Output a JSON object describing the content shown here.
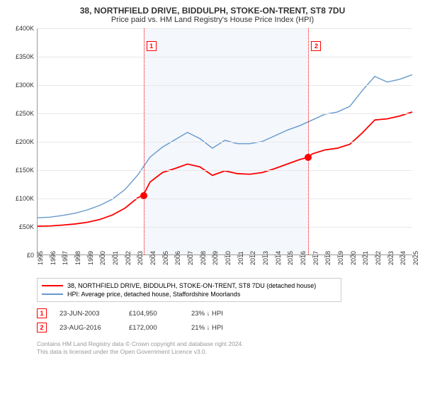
{
  "title": "38, NORTHFIELD DRIVE, BIDDULPH, STOKE-ON-TRENT, ST8 7DU",
  "subtitle": "Price paid vs. HM Land Registry's House Price Index (HPI)",
  "chart": {
    "type": "line",
    "ylim": [
      0,
      400000
    ],
    "ytick_step": 50000,
    "yticks": [
      "£0",
      "£50K",
      "£100K",
      "£150K",
      "£200K",
      "£250K",
      "£300K",
      "£350K",
      "£400K"
    ],
    "xlim": [
      1995,
      2025
    ],
    "xticks": [
      "1995",
      "1996",
      "1997",
      "1998",
      "1999",
      "2000",
      "2001",
      "2002",
      "2003",
      "2004",
      "2005",
      "2006",
      "2007",
      "2008",
      "2009",
      "2010",
      "2011",
      "2012",
      "2013",
      "2014",
      "2015",
      "2016",
      "2017",
      "2018",
      "2019",
      "2020",
      "2021",
      "2022",
      "2023",
      "2024",
      "2025"
    ],
    "background_color": "#ffffff",
    "grid_color": "#e8e8e8",
    "shade_color": "#f4f7fc",
    "shade_range": [
      2003.47,
      2016.65
    ],
    "series": [
      {
        "name": "property",
        "label": "38, NORTHFIELD DRIVE, BIDDULPH, STOKE-ON-TRENT, ST8 7DU (detached house)",
        "color": "#ff0000",
        "width": 1.8,
        "data": [
          [
            1995,
            50000
          ],
          [
            1996,
            50500
          ],
          [
            1997,
            52000
          ],
          [
            1998,
            54000
          ],
          [
            1999,
            57000
          ],
          [
            2000,
            62000
          ],
          [
            2001,
            70000
          ],
          [
            2002,
            82000
          ],
          [
            2003,
            100000
          ],
          [
            2003.47,
            104950
          ],
          [
            2004,
            128000
          ],
          [
            2005,
            145000
          ],
          [
            2006,
            152000
          ],
          [
            2007,
            160000
          ],
          [
            2008,
            155000
          ],
          [
            2009,
            140000
          ],
          [
            2010,
            148000
          ],
          [
            2011,
            143000
          ],
          [
            2012,
            142000
          ],
          [
            2013,
            145000
          ],
          [
            2014,
            152000
          ],
          [
            2015,
            160000
          ],
          [
            2016,
            168000
          ],
          [
            2016.65,
            172000
          ],
          [
            2017,
            178000
          ],
          [
            2018,
            185000
          ],
          [
            2019,
            188000
          ],
          [
            2020,
            195000
          ],
          [
            2021,
            215000
          ],
          [
            2022,
            238000
          ],
          [
            2023,
            240000
          ],
          [
            2024,
            245000
          ],
          [
            2025,
            252000
          ]
        ]
      },
      {
        "name": "hpi",
        "label": "HPI: Average price, detached house, Staffordshire Moorlands",
        "color": "#6699cc",
        "width": 1.4,
        "data": [
          [
            1995,
            65000
          ],
          [
            1996,
            66000
          ],
          [
            1997,
            69000
          ],
          [
            1998,
            73000
          ],
          [
            1999,
            79000
          ],
          [
            2000,
            87000
          ],
          [
            2001,
            98000
          ],
          [
            2002,
            115000
          ],
          [
            2003,
            140000
          ],
          [
            2004,
            172000
          ],
          [
            2005,
            190000
          ],
          [
            2006,
            203000
          ],
          [
            2007,
            216000
          ],
          [
            2008,
            205000
          ],
          [
            2009,
            188000
          ],
          [
            2010,
            202000
          ],
          [
            2011,
            196000
          ],
          [
            2012,
            196000
          ],
          [
            2013,
            200000
          ],
          [
            2014,
            210000
          ],
          [
            2015,
            220000
          ],
          [
            2016,
            228000
          ],
          [
            2017,
            238000
          ],
          [
            2018,
            248000
          ],
          [
            2019,
            252000
          ],
          [
            2020,
            262000
          ],
          [
            2021,
            290000
          ],
          [
            2022,
            315000
          ],
          [
            2023,
            305000
          ],
          [
            2024,
            310000
          ],
          [
            2025,
            318000
          ]
        ]
      }
    ],
    "markers": [
      {
        "n": "1",
        "x": 2003.47,
        "y": 104950
      },
      {
        "n": "2",
        "x": 2016.65,
        "y": 172000
      }
    ]
  },
  "legend": {
    "items": [
      {
        "color": "#ff0000",
        "label": "38, NORTHFIELD DRIVE, BIDDULPH, STOKE-ON-TRENT, ST8 7DU (detached house)"
      },
      {
        "color": "#6699cc",
        "label": "HPI: Average price, detached house, Staffordshire Moorlands"
      }
    ]
  },
  "events": [
    {
      "n": "1",
      "date": "23-JUN-2003",
      "price": "£104,950",
      "delta": "23% ↓ HPI"
    },
    {
      "n": "2",
      "date": "23-AUG-2016",
      "price": "£172,000",
      "delta": "21% ↓ HPI"
    }
  ],
  "footer": {
    "line1": "Contains HM Land Registry data © Crown copyright and database right 2024.",
    "line2": "This data is licensed under the Open Government Licence v3.0."
  }
}
